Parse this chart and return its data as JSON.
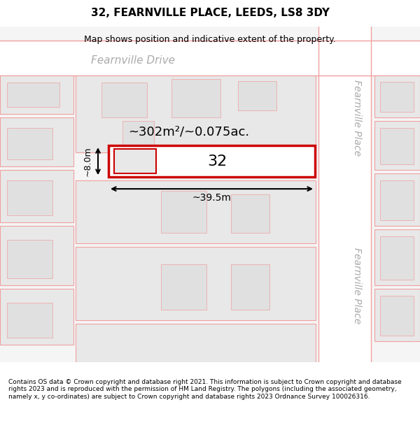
{
  "title": "32, FEARNVILLE PLACE, LEEDS, LS8 3DY",
  "subtitle": "Map shows position and indicative extent of the property.",
  "copyright_text": "Contains OS data © Crown copyright and database right 2021. This information is subject to Crown copyright and database rights 2023 and is reproduced with the permission of HM Land Registry. The polygons (including the associated geometry, namely x, y co-ordinates) are subject to Crown copyright and database rights 2023 Ordnance Survey 100026316.",
  "map_bg": "#f5f5f5",
  "road_fill": "#ffffff",
  "plot_fill": "#e8e8e8",
  "highlight_fill": "#ffffff",
  "highlight_edge": "#cc0000",
  "road_edge": "#f0a0a0",
  "plot_edge": "#f0a0a0",
  "area_text": "~302m²/~0.075ac.",
  "width_text": "~39.5m",
  "height_text": "~8.0m",
  "number_text": "32",
  "road_label_top": "Fearnville Drive",
  "road_label_right1": "Fearnville Place",
  "road_label_right2": "Fearnville Place"
}
